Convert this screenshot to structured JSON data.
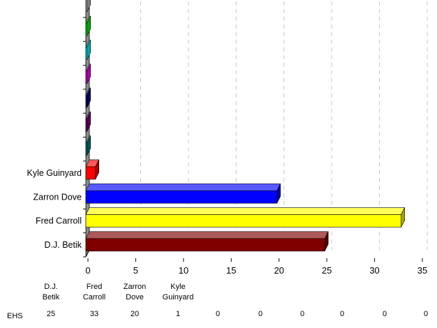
{
  "chart_data": {
    "type": "bar",
    "orientation": "horizontal",
    "style": "3d",
    "categories": [
      "D.J. Betik",
      "Fred Carroll",
      "Zarron Dove",
      "Kyle Guinyard",
      "",
      "",
      "",
      "",
      "",
      "",
      ""
    ],
    "series": [
      {
        "name": "EHS",
        "values": [
          25,
          33,
          20,
          1,
          0,
          0,
          0,
          0,
          0,
          0,
          0
        ]
      }
    ],
    "bar_colors": [
      "#800000",
      "#ffff00",
      "#0000ff",
      "#ff0000",
      "#008080",
      "#800080",
      "#000080",
      "#ff00ff",
      "#00ffff",
      "#00ff00",
      "#c0c0c0"
    ],
    "x_ticks": [
      "0",
      "5",
      "10",
      "15",
      "20",
      "25",
      "30",
      "35"
    ],
    "xlim": [
      0,
      35
    ],
    "grid": "vertical-dashed",
    "legend": "none",
    "title": "",
    "xlabel": "",
    "ylabel": "",
    "table": {
      "row_label": "EHS",
      "headers": [
        "D.J.\nBetik",
        "Fred\nCarroll",
        "Zarron\nDove",
        "Kyle\nGuinyard",
        "",
        "",
        "",
        "",
        "",
        "",
        ""
      ],
      "values": [
        "25",
        "33",
        "20",
        "1",
        "0",
        "0",
        "0",
        "0",
        "0",
        "0",
        "0"
      ]
    }
  }
}
